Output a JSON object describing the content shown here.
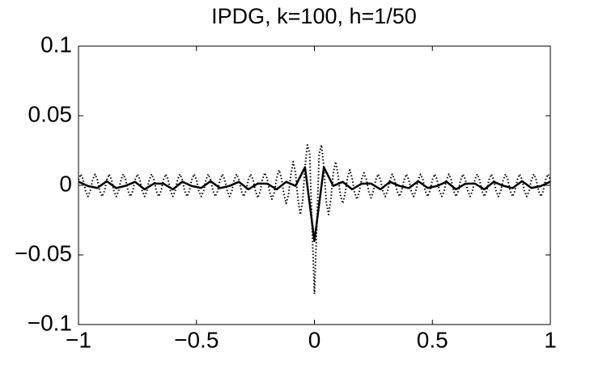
{
  "chart_data": {
    "type": "line",
    "title": "IPDG, k=100, h=1/50",
    "xlim": [
      -1,
      1
    ],
    "ylim": [
      -0.1,
      0.1
    ],
    "xticks": [
      {
        "value": -1,
        "label": "−1"
      },
      {
        "value": -0.5,
        "label": "−0.5"
      },
      0,
      0.5,
      1
    ],
    "yticks": [
      {
        "value": -0.1,
        "label": "−0.1"
      },
      {
        "value": -0.05,
        "label": "−0.05"
      },
      0,
      0.05,
      0.1
    ],
    "grid": false,
    "series": [
      {
        "color": "#000000",
        "style": "dotted",
        "x": [
          -1,
          -0.99,
          -0.98,
          -0.97,
          -0.96,
          -0.95,
          -0.94,
          -0.93,
          -0.92,
          -0.91,
          -0.9,
          -0.89,
          -0.88,
          -0.87,
          -0.86,
          -0.85,
          -0.84,
          -0.83,
          -0.82,
          -0.81,
          -0.8,
          -0.79,
          -0.78,
          -0.77,
          -0.76,
          -0.75,
          -0.74,
          -0.73,
          -0.72,
          -0.71,
          -0.7,
          -0.69,
          -0.68,
          -0.67,
          -0.66,
          -0.65,
          -0.64,
          -0.63,
          -0.62,
          -0.61,
          -0.6,
          -0.59,
          -0.58,
          -0.57,
          -0.56,
          -0.55,
          -0.54,
          -0.53,
          -0.52,
          -0.51,
          -0.5,
          -0.49,
          -0.48,
          -0.47,
          -0.46,
          -0.45,
          -0.44,
          -0.43,
          -0.42,
          -0.41,
          -0.4,
          -0.39,
          -0.38,
          -0.37,
          -0.36,
          -0.35,
          -0.34,
          -0.33,
          -0.32,
          -0.31,
          -0.3,
          -0.29,
          -0.28,
          -0.27,
          -0.26,
          -0.25,
          -0.24,
          -0.23,
          -0.22,
          -0.21,
          -0.2,
          -0.19,
          -0.18,
          -0.17,
          -0.16,
          -0.15,
          -0.14,
          -0.13,
          -0.12,
          -0.11,
          -0.1,
          -0.09,
          -0.08,
          -0.07,
          -0.06,
          -0.05,
          -0.04,
          -0.03,
          -0.02,
          -0.01,
          0,
          0.01,
          0.02,
          0.03,
          0.04,
          0.05,
          0.06,
          0.07,
          0.08,
          0.09,
          0.1,
          0.11,
          0.12,
          0.13,
          0.14,
          0.15,
          0.16,
          0.17,
          0.18,
          0.19,
          0.2,
          0.21,
          0.22,
          0.23,
          0.24,
          0.25,
          0.26,
          0.27,
          0.28,
          0.29,
          0.3,
          0.31,
          0.32,
          0.33,
          0.34,
          0.35,
          0.36,
          0.37,
          0.38,
          0.39,
          0.4,
          0.41,
          0.42,
          0.43,
          0.44,
          0.45,
          0.46,
          0.47,
          0.48,
          0.49,
          0.5,
          0.51,
          0.52,
          0.53,
          0.54,
          0.55,
          0.56,
          0.57,
          0.58,
          0.59,
          0.6,
          0.61,
          0.62,
          0.63,
          0.64,
          0.65,
          0.66,
          0.67,
          0.68,
          0.69,
          0.7,
          0.71,
          0.72,
          0.73,
          0.74,
          0.75,
          0.76,
          0.77,
          0.78,
          0.79,
          0.8,
          0.81,
          0.82,
          0.83,
          0.84,
          0.85,
          0.86,
          0.87,
          0.88,
          0.89,
          0.9,
          0.91,
          0.92,
          0.93,
          0.94,
          0.95,
          0.96,
          0.97,
          0.98,
          0.99,
          1
        ],
        "values": [
          0.004,
          0.008,
          0.004,
          -0.004,
          -0.008,
          -0.004,
          0.004,
          0.008,
          0.004,
          -0.004,
          -0.008,
          -0.004,
          0.004,
          0.008,
          0.004,
          -0.004,
          -0.008,
          -0.004,
          0.004,
          0.008,
          0.004,
          -0.004,
          -0.008,
          -0.004,
          0.004,
          0.008,
          0.004,
          -0.004,
          -0.008,
          -0.004,
          0.004,
          0.008,
          0.004,
          -0.004,
          -0.008,
          -0.004,
          0.004,
          0.008,
          0.004,
          -0.004,
          -0.008,
          -0.004,
          0.004,
          0.008,
          0.004,
          -0.004,
          -0.008,
          -0.004,
          0.004,
          0.008,
          0.004,
          -0.004,
          -0.008,
          -0.004,
          0.004,
          0.008,
          0.004,
          -0.004,
          -0.008,
          -0.004,
          0.004,
          0.008,
          0.004,
          -0.004,
          -0.008,
          -0.004,
          0.004,
          0.008,
          0.004,
          -0.004,
          -0.008,
          -0.004,
          0.004,
          0.008,
          0.004,
          -0.004,
          -0.009,
          -0.0045,
          0.0045,
          0.009,
          0.0045,
          -0.0045,
          -0.01,
          -0.005,
          0.005,
          0.011,
          0.0055,
          -0.006,
          -0.013,
          -0.007,
          0.0075,
          0.017,
          0.009,
          -0.0095,
          -0.021,
          -0.0115,
          0.013,
          0.029,
          0.0225,
          -0.03,
          -0.078,
          -0.03,
          0.0225,
          0.029,
          0.013,
          -0.0115,
          -0.021,
          -0.0095,
          0.009,
          0.017,
          0.0075,
          -0.007,
          -0.013,
          -0.006,
          0.0055,
          0.011,
          0.005,
          -0.005,
          -0.01,
          -0.0045,
          0.0045,
          0.009,
          0.0045,
          -0.0045,
          -0.009,
          -0.004,
          0.004,
          0.008,
          0.004,
          -0.004,
          -0.008,
          -0.004,
          0.004,
          0.008,
          0.004,
          -0.004,
          -0.008,
          -0.004,
          0.004,
          0.008,
          0.004,
          -0.004,
          -0.008,
          -0.004,
          0.004,
          0.008,
          0.004,
          -0.004,
          -0.008,
          -0.004,
          0.004,
          0.008,
          0.004,
          -0.004,
          -0.008,
          -0.004,
          0.004,
          0.008,
          0.004,
          -0.004,
          -0.008,
          -0.004,
          0.004,
          0.008,
          0.004,
          -0.004,
          -0.008,
          -0.004,
          0.004,
          0.008,
          0.004,
          -0.004,
          -0.008,
          -0.004,
          0.004,
          0.008,
          0.004,
          -0.004,
          -0.008,
          -0.004,
          0.004,
          0.008,
          0.004,
          -0.004,
          -0.008,
          -0.004,
          0.004,
          0.008,
          0.004,
          -0.004,
          -0.008,
          -0.004,
          0.004,
          0.008,
          0.004,
          -0.004,
          -0.008,
          -0.004,
          0.004,
          0.008,
          0.004
        ]
      },
      {
        "color": "#000000",
        "style": "solid",
        "x": [
          -1,
          -0.96,
          -0.92,
          -0.88,
          -0.84,
          -0.8,
          -0.76,
          -0.72,
          -0.68,
          -0.64,
          -0.6,
          -0.56,
          -0.52,
          -0.48,
          -0.44,
          -0.4,
          -0.36,
          -0.32,
          -0.28,
          -0.24,
          -0.2,
          -0.16,
          -0.12,
          -0.08,
          -0.04,
          0,
          0.04,
          0.08,
          0.12,
          0.16,
          0.2,
          0.24,
          0.28,
          0.32,
          0.36,
          0.4,
          0.44,
          0.48,
          0.52,
          0.56,
          0.6,
          0.64,
          0.68,
          0.72,
          0.76,
          0.8,
          0.84,
          0.88,
          0.92,
          0.96,
          1
        ],
        "values": [
          0.0026,
          -0.0005,
          -0.0019,
          0.003,
          -0.002,
          -0.0003,
          0.0025,
          -0.0029,
          0.0013,
          0.0012,
          -0.0029,
          0.0026,
          -0.0005,
          -0.0019,
          0.003,
          -0.002,
          -0.0004,
          0.0025,
          -0.0029,
          0.0013,
          0.0012,
          -0.0029,
          0.0025,
          -0.0004,
          0.013,
          -0.04,
          0.013,
          -0.0004,
          0.0025,
          -0.0029,
          0.0012,
          0.0013,
          -0.0029,
          0.0025,
          -0.0004,
          -0.002,
          0.003,
          -0.0019,
          -0.0005,
          0.0026,
          -0.0029,
          0.0012,
          0.0013,
          -0.0029,
          0.0025,
          -0.0003,
          -0.002,
          0.003,
          -0.0019,
          -0.0005,
          0.0026
        ]
      }
    ]
  }
}
